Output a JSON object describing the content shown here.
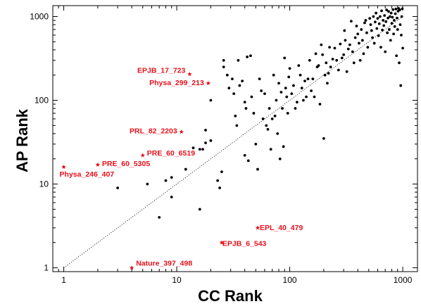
{
  "chart_data": {
    "type": "scatter",
    "title": "",
    "xlabel": "CC Rank",
    "ylabel": "AP Rank",
    "xscale": "log",
    "yscale": "log",
    "xlim": [
      0.8,
      1350
    ],
    "ylim": [
      0.9,
      1350
    ],
    "xticks": [
      {
        "value": 1,
        "label": "1"
      },
      {
        "value": 10,
        "label": "10"
      },
      {
        "value": 100,
        "label": "100"
      },
      {
        "value": 1000,
        "label": "1000"
      }
    ],
    "yticks": [
      {
        "value": 1,
        "label": "1"
      },
      {
        "value": 10,
        "label": "10"
      },
      {
        "value": 100,
        "label": "100"
      },
      {
        "value": 1000,
        "label": "1000"
      }
    ],
    "grid": false,
    "reference_line": {
      "style": "dotted",
      "from": [
        1,
        1
      ],
      "to": [
        1000,
        1000
      ]
    },
    "colors": {
      "points": "#000000",
      "highlight": "#e8101a",
      "axes": "#000000"
    },
    "series": [
      {
        "marker": "dot",
        "color": "#000000",
        "points": [
          [
            3,
            9
          ],
          [
            5.5,
            10
          ],
          [
            7,
            4
          ],
          [
            8,
            11
          ],
          [
            9,
            7
          ],
          [
            9,
            12
          ],
          [
            12,
            15
          ],
          [
            14,
            27
          ],
          [
            16,
            5
          ],
          [
            16,
            26
          ],
          [
            17,
            26
          ],
          [
            18,
            44
          ],
          [
            18,
            31
          ],
          [
            20,
            33
          ],
          [
            23,
            11
          ],
          [
            24,
            9
          ],
          [
            25,
            14
          ],
          [
            20,
            100
          ],
          [
            26,
            300
          ],
          [
            26,
            250
          ],
          [
            28,
            200
          ],
          [
            29,
            140
          ],
          [
            31,
            180
          ],
          [
            32,
            120
          ],
          [
            33,
            65
          ],
          [
            34,
            50
          ],
          [
            35,
            300
          ],
          [
            36,
            150
          ],
          [
            38,
            170
          ],
          [
            40,
            95
          ],
          [
            40,
            22
          ],
          [
            41,
            80
          ],
          [
            43,
            19
          ],
          [
            42,
            330
          ],
          [
            45,
            340
          ],
          [
            46,
            110
          ],
          [
            48,
            70
          ],
          [
            50,
            30
          ],
          [
            52,
            15
          ],
          [
            54,
            180
          ],
          [
            56,
            130
          ],
          [
            58,
            60
          ],
          [
            60,
            120
          ],
          [
            62,
            50
          ],
          [
            64,
            45
          ],
          [
            66,
            80
          ],
          [
            68,
            26
          ],
          [
            70,
            60
          ],
          [
            72,
            200
          ],
          [
            74,
            65
          ],
          [
            76,
            100
          ],
          [
            78,
            40
          ],
          [
            80,
            160
          ],
          [
            82,
            20
          ],
          [
            84,
            125
          ],
          [
            86,
            80
          ],
          [
            88,
            28
          ],
          [
            90,
            320
          ],
          [
            92,
            140
          ],
          [
            94,
            110
          ],
          [
            96,
            70
          ],
          [
            98,
            190
          ],
          [
            100,
            240
          ],
          [
            104,
            120
          ],
          [
            108,
            150
          ],
          [
            112,
            80
          ],
          [
            116,
            95
          ],
          [
            120,
            260
          ],
          [
            124,
            200
          ],
          [
            128,
            140
          ],
          [
            132,
            100
          ],
          [
            136,
            170
          ],
          [
            140,
            110
          ],
          [
            145,
            180
          ],
          [
            150,
            300
          ],
          [
            155,
            130
          ],
          [
            160,
            180
          ],
          [
            165,
            110
          ],
          [
            170,
            360
          ],
          [
            175,
            250
          ],
          [
            180,
            260
          ],
          [
            185,
            90
          ],
          [
            190,
            460
          ],
          [
            195,
            350
          ],
          [
            200,
            35
          ],
          [
            205,
            200
          ],
          [
            210,
            280
          ],
          [
            215,
            160
          ],
          [
            220,
            210
          ],
          [
            225,
            430
          ],
          [
            230,
            250
          ],
          [
            240,
            310
          ],
          [
            250,
            420
          ],
          [
            260,
            300
          ],
          [
            270,
            230
          ],
          [
            280,
            470
          ],
          [
            290,
            320
          ],
          [
            300,
            350
          ],
          [
            305,
            680
          ],
          [
            310,
            520
          ],
          [
            320,
            220
          ],
          [
            330,
            410
          ],
          [
            340,
            460
          ],
          [
            350,
            880
          ],
          [
            360,
            380
          ],
          [
            370,
            280
          ],
          [
            380,
            560
          ],
          [
            390,
            770
          ],
          [
            400,
            620
          ],
          [
            410,
            480
          ],
          [
            420,
            300
          ],
          [
            430,
            700
          ],
          [
            440,
            520
          ],
          [
            450,
            360
          ],
          [
            460,
            840
          ],
          [
            470,
            900
          ],
          [
            480,
            640
          ],
          [
            490,
            430
          ],
          [
            510,
            950
          ],
          [
            520,
            800
          ],
          [
            530,
            680
          ],
          [
            540,
            560
          ],
          [
            550,
            1000
          ],
          [
            560,
            480
          ],
          [
            570,
            860
          ],
          [
            580,
            1100
          ],
          [
            590,
            720
          ],
          [
            600,
            950
          ],
          [
            610,
            590
          ],
          [
            620,
            820
          ],
          [
            630,
            1000
          ],
          [
            640,
            430
          ],
          [
            650,
            1170
          ],
          [
            660,
            690
          ],
          [
            670,
            900
          ],
          [
            680,
            780
          ],
          [
            690,
            1030
          ],
          [
            700,
            380
          ],
          [
            710,
            870
          ],
          [
            720,
            1200
          ],
          [
            730,
            640
          ],
          [
            740,
            960
          ],
          [
            750,
            1150
          ],
          [
            760,
            700
          ],
          [
            770,
            1000
          ],
          [
            780,
            520
          ],
          [
            790,
            1100
          ],
          [
            800,
            830
          ],
          [
            810,
            980
          ],
          [
            820,
            1210
          ],
          [
            830,
            620
          ],
          [
            840,
            900
          ],
          [
            850,
            760
          ],
          [
            860,
            1080
          ],
          [
            870,
            1230
          ],
          [
            880,
            340
          ],
          [
            890,
            960
          ],
          [
            900,
            700
          ],
          [
            910,
            1160
          ],
          [
            920,
            1250
          ],
          [
            930,
            280
          ],
          [
            940,
            1200
          ],
          [
            950,
            800
          ],
          [
            960,
            150
          ],
          [
            970,
            600
          ],
          [
            980,
            1000
          ],
          [
            990,
            1240
          ],
          [
            1000,
            420
          ]
        ]
      },
      {
        "marker": "star",
        "color": "#e8101a",
        "points": [
          {
            "x": 13,
            "y": 205,
            "label": "EPJB_17_723"
          },
          {
            "x": 19,
            "y": 160,
            "label": "Physa_299_213"
          },
          {
            "x": 11,
            "y": 42,
            "label": "PRL_82_2203"
          },
          {
            "x": 5,
            "y": 22,
            "label": "PRE_60_6519"
          },
          {
            "x": 2,
            "y": 17,
            "label": "PRE_60_5305"
          },
          {
            "x": 1,
            "y": 16,
            "label": "Physa_246_407"
          },
          {
            "x": 52,
            "y": 3,
            "label": "EPL_40_479"
          },
          {
            "x": 25,
            "y": 2,
            "label": "EPJB_6_543"
          },
          {
            "x": 4,
            "y": 1,
            "label": "Nature_397_498"
          }
        ]
      }
    ]
  }
}
